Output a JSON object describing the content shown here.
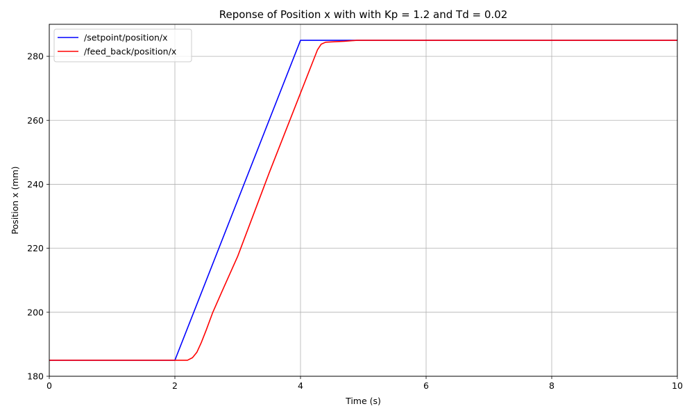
{
  "chart_data": {
    "type": "line",
    "title": "Reponse of Position x with with Kp = 1.2 and Td = 0.02",
    "xlabel": "Time (s)",
    "ylabel": "Position x (mm)",
    "xlim": [
      0,
      10
    ],
    "ylim": [
      180,
      290
    ],
    "xticks": [
      0,
      2,
      4,
      6,
      8,
      10
    ],
    "yticks": [
      180,
      200,
      220,
      240,
      260,
      280
    ],
    "grid": true,
    "legend_position": "upper-left",
    "series": [
      {
        "name": "/setpoint/position/x",
        "color": "#0000ff",
        "x": [
          0,
          2.0,
          4.0,
          10.0
        ],
        "y": [
          185,
          185,
          285,
          285
        ]
      },
      {
        "name": "/feed_back/position/x",
        "color": "#ff0000",
        "x": [
          0,
          2.2,
          2.28,
          2.35,
          2.42,
          2.5,
          2.6,
          2.75,
          3.0,
          3.5,
          4.0,
          4.1,
          4.2,
          4.27,
          4.33,
          4.4,
          4.5,
          4.7,
          4.9,
          5.2,
          10.0
        ],
        "y": [
          185,
          185,
          185.8,
          187.5,
          190.5,
          194.5,
          199.8,
          206.5,
          217.5,
          243.5,
          268.5,
          273.5,
          278.5,
          282.0,
          283.8,
          284.4,
          284.5,
          284.7,
          285,
          285,
          285
        ]
      }
    ]
  }
}
